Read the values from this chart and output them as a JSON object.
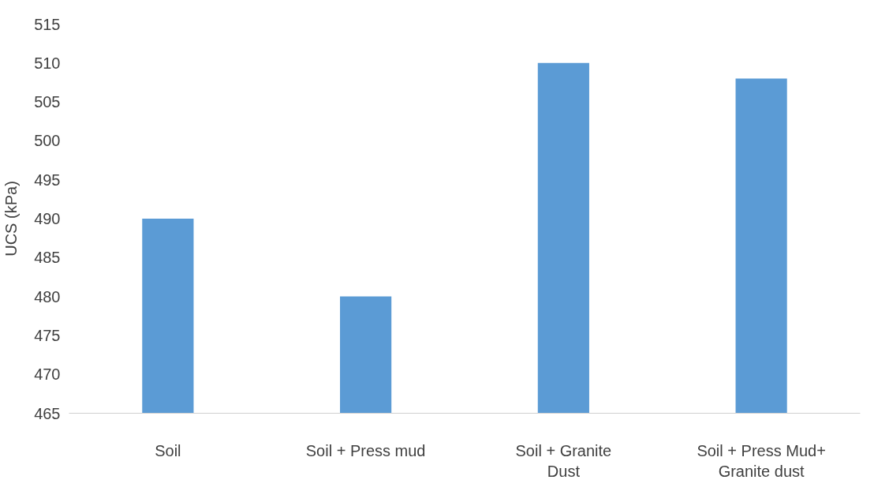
{
  "chart_data": {
    "type": "bar",
    "ylabel": "UCS (kPa)",
    "categories": [
      "Soil",
      "Soil + Press mud",
      "Soil + Granite Dust",
      "Soil + Press Mud+ Granite dust"
    ],
    "values": [
      490,
      480,
      510,
      508
    ],
    "color": "#5b9bd5",
    "ylim": [
      465,
      515
    ],
    "yticks": [
      465,
      470,
      475,
      480,
      485,
      490,
      495,
      500,
      505,
      510,
      515
    ],
    "grid": false
  }
}
